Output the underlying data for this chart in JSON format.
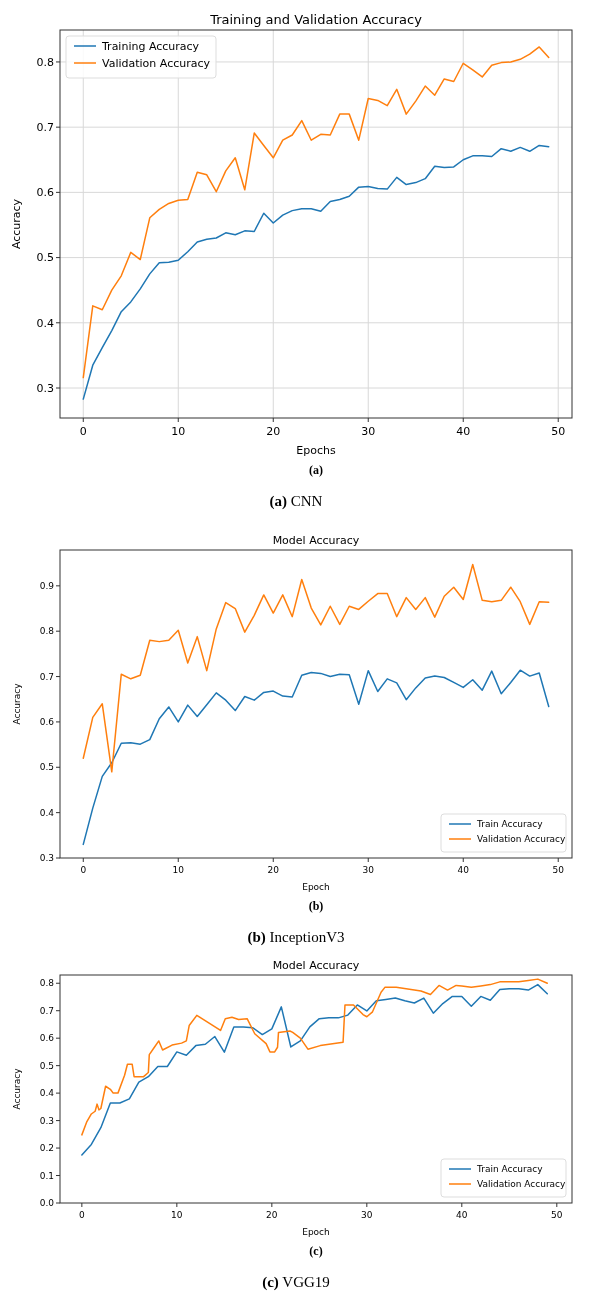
{
  "chart_data": [
    {
      "type": "line",
      "title": "Training and Validation Accuracy",
      "xlabel": "Epochs",
      "ylabel": "Accuracy",
      "annotations": [
        "(a)",
        "(a) CNN"
      ],
      "x": [
        0,
        1,
        2,
        3,
        4,
        5,
        6,
        7,
        8,
        9,
        10,
        11,
        12,
        13,
        14,
        15,
        16,
        17,
        18,
        19,
        20,
        21,
        22,
        23,
        24,
        25,
        26,
        27,
        28,
        29,
        30,
        31,
        32,
        33,
        34,
        35,
        36,
        37,
        38,
        39,
        40,
        41,
        42,
        43,
        44,
        45,
        46,
        47,
        48,
        49
      ],
      "series": [
        {
          "name": "Training Accuracy",
          "color": "#1f77b4",
          "values": [
            0.283,
            0.335,
            0.362,
            0.388,
            0.417,
            0.432,
            0.452,
            0.475,
            0.492,
            0.493,
            0.496,
            0.509,
            0.524,
            0.528,
            0.53,
            0.538,
            0.535,
            0.541,
            0.54,
            0.568,
            0.553,
            0.565,
            0.572,
            0.575,
            0.575,
            0.571,
            0.586,
            0.589,
            0.594,
            0.608,
            0.609,
            0.606,
            0.605,
            0.623,
            0.612,
            0.615,
            0.621,
            0.64,
            0.638,
            0.639,
            0.65,
            0.656,
            0.656,
            0.655,
            0.667,
            0.663,
            0.669,
            0.663,
            0.672,
            0.67
          ]
        },
        {
          "name": "Validation Accuracy",
          "color": "#ff7f0e",
          "values": [
            0.316,
            0.426,
            0.42,
            0.45,
            0.472,
            0.508,
            0.497,
            0.561,
            0.574,
            0.583,
            0.588,
            0.589,
            0.631,
            0.627,
            0.601,
            0.633,
            0.653,
            0.604,
            0.691,
            0.672,
            0.653,
            0.68,
            0.688,
            0.71,
            0.68,
            0.689,
            0.688,
            0.72,
            0.72,
            0.68,
            0.744,
            0.741,
            0.733,
            0.758,
            0.72,
            0.74,
            0.763,
            0.749,
            0.774,
            0.77,
            0.798,
            0.788,
            0.777,
            0.795,
            0.799,
            0.8,
            0.804,
            0.812,
            0.823,
            0.807
          ]
        }
      ],
      "xlim": [
        -2.45,
        51.45
      ],
      "xticks": [
        0,
        10,
        20,
        30,
        40,
        50
      ],
      "ylim": [
        0.254,
        0.849
      ],
      "yticks": [
        0.3,
        0.4,
        0.5,
        0.6,
        0.7,
        0.8
      ],
      "grid": true,
      "legend": "top left"
    },
    {
      "type": "line",
      "title": "Model Accuracy",
      "xlabel": "Epoch",
      "ylabel": "Accuracy",
      "annotations": [
        "(b)",
        "(b) InceptionV3"
      ],
      "x": [
        0,
        1,
        2,
        3,
        4,
        5,
        6,
        7,
        8,
        9,
        10,
        11,
        12,
        13,
        14,
        15,
        16,
        17,
        18,
        19,
        20,
        21,
        22,
        23,
        24,
        25,
        26,
        27,
        28,
        29,
        30,
        31,
        32,
        33,
        34,
        35,
        36,
        37,
        38,
        39,
        40,
        41,
        42,
        43,
        44,
        45,
        46,
        47,
        48,
        49
      ],
      "series": [
        {
          "name": "Train Accuracy",
          "color": "#1f77b4",
          "values": [
            0.33,
            0.41,
            0.48,
            0.51,
            0.553,
            0.554,
            0.551,
            0.561,
            0.607,
            0.633,
            0.6,
            0.637,
            0.612,
            0.638,
            0.664,
            0.648,
            0.625,
            0.656,
            0.648,
            0.665,
            0.668,
            0.657,
            0.655,
            0.703,
            0.709,
            0.707,
            0.7,
            0.705,
            0.704,
            0.639,
            0.713,
            0.667,
            0.695,
            0.686,
            0.649,
            0.675,
            0.697,
            0.701,
            0.698,
            0.687,
            0.676,
            0.693,
            0.67,
            0.712,
            0.662,
            0.687,
            0.714,
            0.701,
            0.708,
            0.634
          ]
        },
        {
          "name": "Validation Accuracy",
          "color": "#ff7f0e",
          "values": [
            0.52,
            0.61,
            0.64,
            0.49,
            0.705,
            0.695,
            0.703,
            0.78,
            0.777,
            0.78,
            0.802,
            0.73,
            0.788,
            0.713,
            0.805,
            0.863,
            0.85,
            0.798,
            0.835,
            0.88,
            0.84,
            0.88,
            0.832,
            0.914,
            0.851,
            0.814,
            0.855,
            0.815,
            0.855,
            0.848,
            0.866,
            0.883,
            0.883,
            0.832,
            0.874,
            0.848,
            0.874,
            0.831,
            0.877,
            0.897,
            0.87,
            0.947,
            0.868,
            0.865,
            0.868,
            0.897,
            0.865,
            0.815,
            0.865,
            0.864
          ]
        }
      ],
      "xlim": [
        -2.45,
        51.45
      ],
      "xticks": [
        0,
        10,
        20,
        30,
        40,
        50
      ],
      "ylim": [
        0.3,
        0.979
      ],
      "yticks": [
        0.3,
        0.4,
        0.5,
        0.6,
        0.7,
        0.8,
        0.9
      ],
      "grid": false,
      "legend": "bottom right"
    },
    {
      "type": "line",
      "title": "Model Accuracy",
      "xlabel": "Epoch",
      "ylabel": "Accuracy",
      "annotations": [
        "(c)",
        "(c) VGG19"
      ],
      "x": [
        0,
        1,
        2,
        3,
        4,
        5,
        6,
        7,
        8,
        9,
        10,
        11,
        12,
        13,
        14,
        15,
        16,
        17,
        18,
        19,
        20,
        21,
        22,
        23,
        24,
        25,
        26,
        27,
        28,
        29,
        30,
        31,
        32,
        33,
        34,
        35,
        36,
        37,
        38,
        39,
        40,
        41,
        42,
        43,
        44,
        45,
        46,
        47,
        48,
        49
      ],
      "series": [
        {
          "name": "Train Accuracy",
          "color": "#1f77b4",
          "values": [
            0.175,
            0.213,
            0.274,
            0.364,
            0.364,
            0.379,
            0.44,
            0.46,
            0.497,
            0.497,
            0.55,
            0.538,
            0.573,
            0.578,
            0.606,
            0.549,
            0.641,
            0.641,
            0.638,
            0.613,
            0.634,
            0.714,
            0.568,
            0.59,
            0.641,
            0.671,
            0.674,
            0.674,
            0.684,
            0.721,
            0.699,
            0.736,
            0.741,
            0.746,
            0.736,
            0.728,
            0.746,
            0.691,
            0.726,
            0.752,
            0.752,
            0.716,
            0.752,
            0.738,
            0.777,
            0.78,
            0.78,
            0.775,
            0.795,
            0.762
          ]
        },
        {
          "name": "Validation Accuracy",
          "color": "#ff7f0e",
          "x": [
            0,
            0.5,
            1,
            1.4,
            1.6,
            1.8,
            2,
            2.5,
            3,
            3.3,
            3.8,
            4.5,
            4.8,
            5.3,
            5.5,
            6.5,
            7,
            7.1,
            7.6,
            8.1,
            8.5,
            9.5,
            10.5,
            11,
            11.3,
            12.1,
            12.9,
            14.6,
            15.1,
            15.8,
            16.5,
            17.4,
            18.2,
            19.4,
            19.8,
            20.3,
            20.6,
            20.7,
            21.9,
            22.2,
            23,
            23.8,
            25.1,
            27.5,
            27.7,
            28.6,
            29.6,
            30,
            30.6,
            31.5,
            31.9,
            33.1,
            35.7,
            36.7,
            37.6,
            38.5,
            39.4,
            40,
            41,
            42,
            43,
            44,
            45,
            46,
            47,
            48,
            49
          ],
          "values": [
            0.248,
            0.294,
            0.324,
            0.334,
            0.36,
            0.339,
            0.344,
            0.425,
            0.414,
            0.4,
            0.4,
            0.465,
            0.505,
            0.505,
            0.46,
            0.46,
            0.475,
            0.54,
            0.565,
            0.59,
            0.557,
            0.575,
            0.582,
            0.59,
            0.646,
            0.683,
            0.666,
            0.628,
            0.671,
            0.676,
            0.668,
            0.671,
            0.616,
            0.58,
            0.55,
            0.55,
            0.567,
            0.621,
            0.626,
            0.621,
            0.6,
            0.56,
            0.573,
            0.585,
            0.721,
            0.721,
            0.686,
            0.678,
            0.696,
            0.767,
            0.785,
            0.785,
            0.772,
            0.759,
            0.792,
            0.775,
            0.792,
            0.79,
            0.785,
            0.79,
            0.795,
            0.805,
            0.805,
            0.805,
            0.81,
            0.815,
            0.8
          ]
        }
      ],
      "xlim": [
        -2.3,
        51.6
      ],
      "xticks": [
        0,
        10,
        20,
        30,
        40,
        50
      ],
      "ylim": [
        0,
        0.83
      ],
      "yticks": [
        {
          "value": 0,
          "label": "0.0"
        },
        0.1,
        0.2,
        0.3,
        0.4,
        0.5,
        0.6,
        0.7,
        0.8
      ],
      "grid": false,
      "legend": "bottom right"
    }
  ]
}
